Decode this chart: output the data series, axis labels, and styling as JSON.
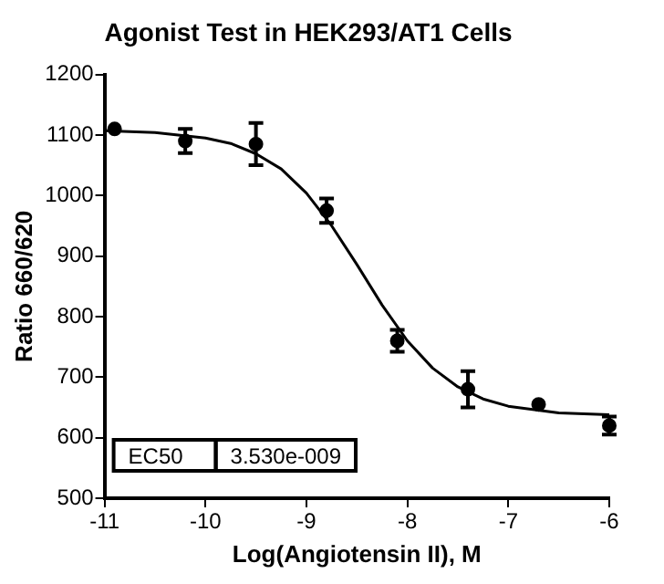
{
  "chart_data": {
    "type": "scatter",
    "title": "Agonist Test in HEK293/AT1 Cells",
    "xlabel": "Log(Angiotensin II), M",
    "ylabel": "Ratio 660/620",
    "xlim": [
      -11,
      -6
    ],
    "xticks": [
      -11,
      -10,
      -9,
      -8,
      -7,
      -6
    ],
    "ylim": [
      500,
      1200
    ],
    "yticks": [
      500,
      600,
      700,
      800,
      900,
      1000,
      1100,
      1200
    ],
    "grid": false,
    "legend": false,
    "marker": "circle",
    "annotations": [
      "EC50",
      "3.530e-009"
    ],
    "series": [
      {
        "color": "#000000",
        "x": [
          -10.9,
          -10.2,
          -9.5,
          -8.8,
          -8.1,
          -7.4,
          -6.7,
          -6.0
        ],
        "values": [
          1110,
          1090,
          1085,
          975,
          760,
          680,
          655,
          620
        ],
        "errors": [
          null,
          20,
          35,
          20,
          18,
          30,
          null,
          15
        ]
      },
      {
        "type": "line",
        "color": "#000000",
        "marker": "none",
        "line_style": "solid",
        "x": [
          -11,
          -10.5,
          -10,
          -9.75,
          -9.5,
          -9.25,
          -9,
          -8.75,
          -8.5,
          -8.25,
          -8,
          -7.75,
          -7.5,
          -7.25,
          -7,
          -6.5,
          -6
        ],
        "values": [
          1107,
          1104,
          1095,
          1086,
          1069,
          1044,
          1004,
          950,
          886,
          819,
          760,
          715,
          684,
          664,
          652,
          641,
          638
        ]
      }
    ]
  }
}
